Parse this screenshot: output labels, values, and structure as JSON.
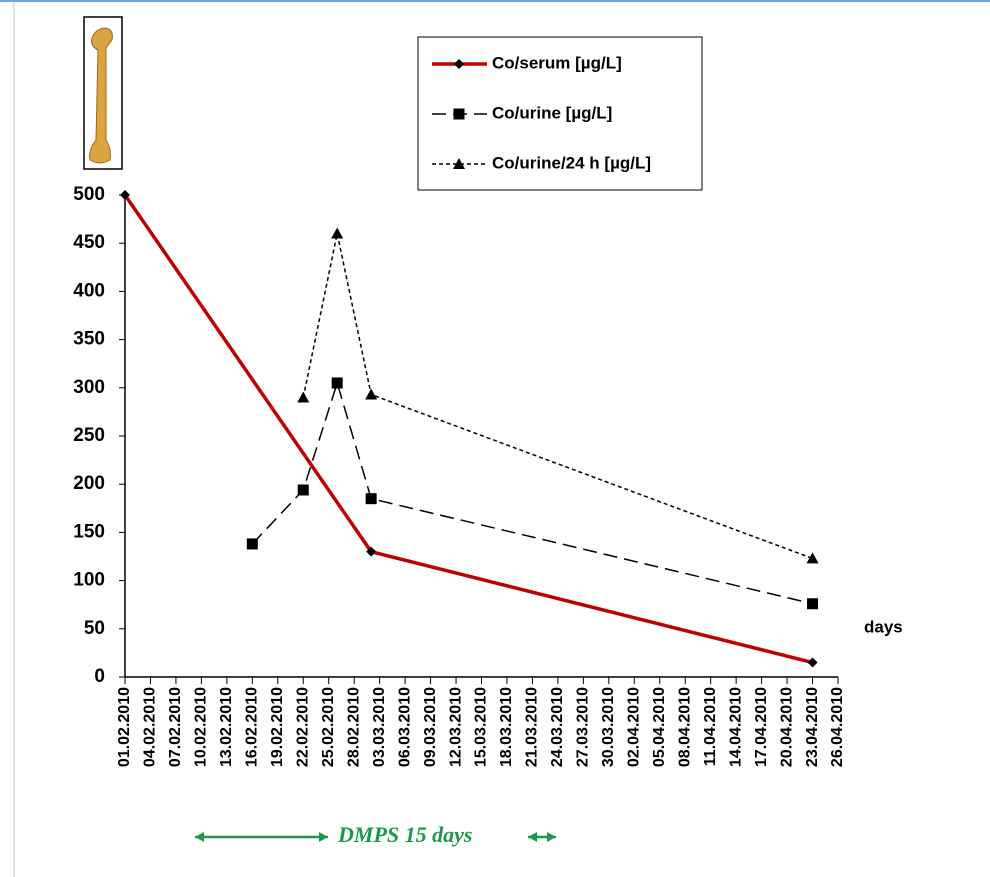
{
  "chart_data": {
    "type": "line",
    "xlabel": "days",
    "annotation": "DMPS 15 days",
    "annotation_color": "#1a9a4a",
    "xlim": [
      "01.02.2010",
      "26.04.2010"
    ],
    "xticks": [
      "01.02.2010",
      "04.02.2010",
      "07.02.2010",
      "10.02.2010",
      "13.02.2010",
      "16.02.2010",
      "19.02.2010",
      "22.02.2010",
      "25.02.2010",
      "28.02.2010",
      "03.03.2010",
      "06.03.2010",
      "09.03.2010",
      "12.03.2010",
      "15.03.2010",
      "18.03.2010",
      "21.03.2010",
      "24.03.2010",
      "27.03.2010",
      "30.03.2010",
      "02.04.2010",
      "05.04.2010",
      "08.04.2010",
      "11.04.2010",
      "14.04.2010",
      "17.04.2010",
      "20.04.2010",
      "23.04.2010",
      "26.04.2010"
    ],
    "ylim": [
      0,
      500
    ],
    "yticks": [
      0,
      50,
      100,
      150,
      200,
      250,
      300,
      350,
      400,
      450,
      500
    ],
    "grid": false,
    "legend": "top-right",
    "series": [
      {
        "name": "Co/serum [µg/L]",
        "color": "#c00000",
        "dash": "solid",
        "marker": "diamond",
        "x": [
          "01.02.2010",
          "02.03.2010",
          "23.04.2010"
        ],
        "values": [
          500,
          130,
          15
        ]
      },
      {
        "name": "Co/urine [µg/L]",
        "color": "#000000",
        "dash": "dashed",
        "marker": "square",
        "x": [
          "16.02.2010",
          "22.02.2010",
          "26.02.2010",
          "02.03.2010",
          "23.04.2010"
        ],
        "values": [
          138,
          194,
          305,
          185,
          76
        ]
      },
      {
        "name": "Co/urine/24 h [µg/L]",
        "color": "#000000",
        "dash": "dotted",
        "marker": "triangle",
        "x": [
          "22.02.2010",
          "26.02.2010",
          "02.03.2010",
          "23.04.2010"
        ],
        "values": [
          290,
          460,
          293,
          123
        ]
      }
    ]
  }
}
